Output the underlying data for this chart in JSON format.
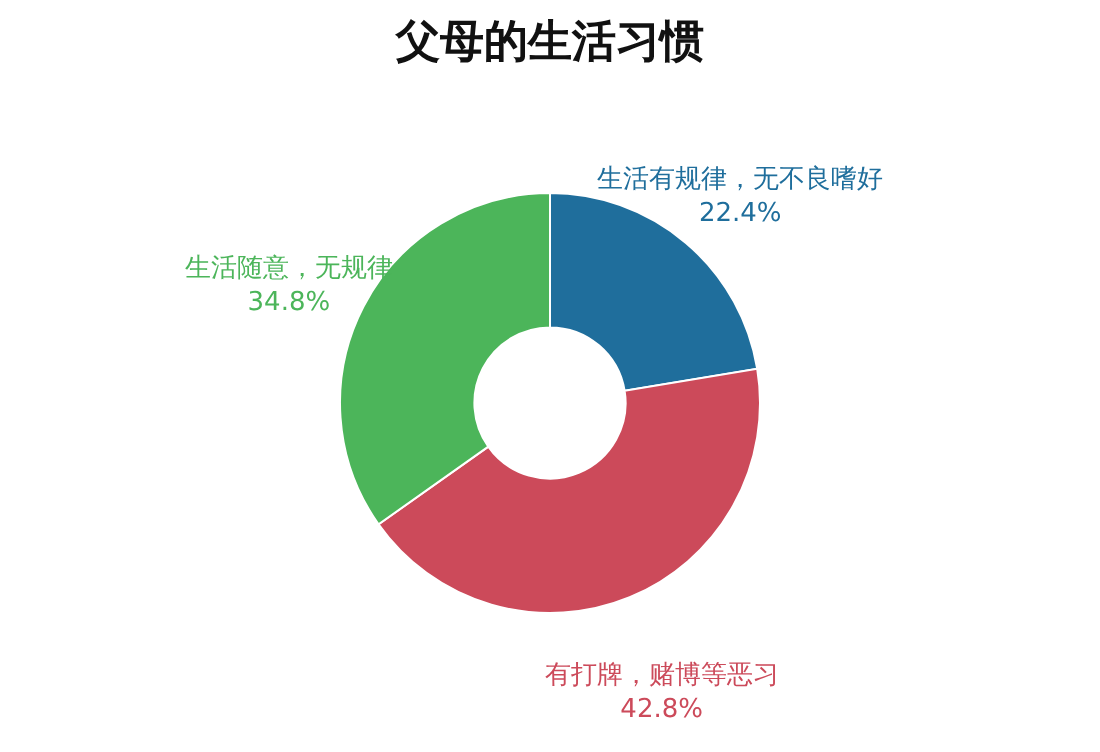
{
  "chart_data": {
    "type": "donut",
    "title": "父母的生活习惯",
    "categories": [
      "生活有规律，无不良嗜好",
      "有打牌，赌博等恶习",
      "生活随意，无规律"
    ],
    "values": [
      22.4,
      42.8,
      34.8
    ],
    "colors": [
      "#1f6e9c",
      "#cc4a5a",
      "#4cb55a"
    ],
    "value_labels": [
      "22.4%",
      "42.8%",
      "34.8%"
    ],
    "legend": false
  }
}
